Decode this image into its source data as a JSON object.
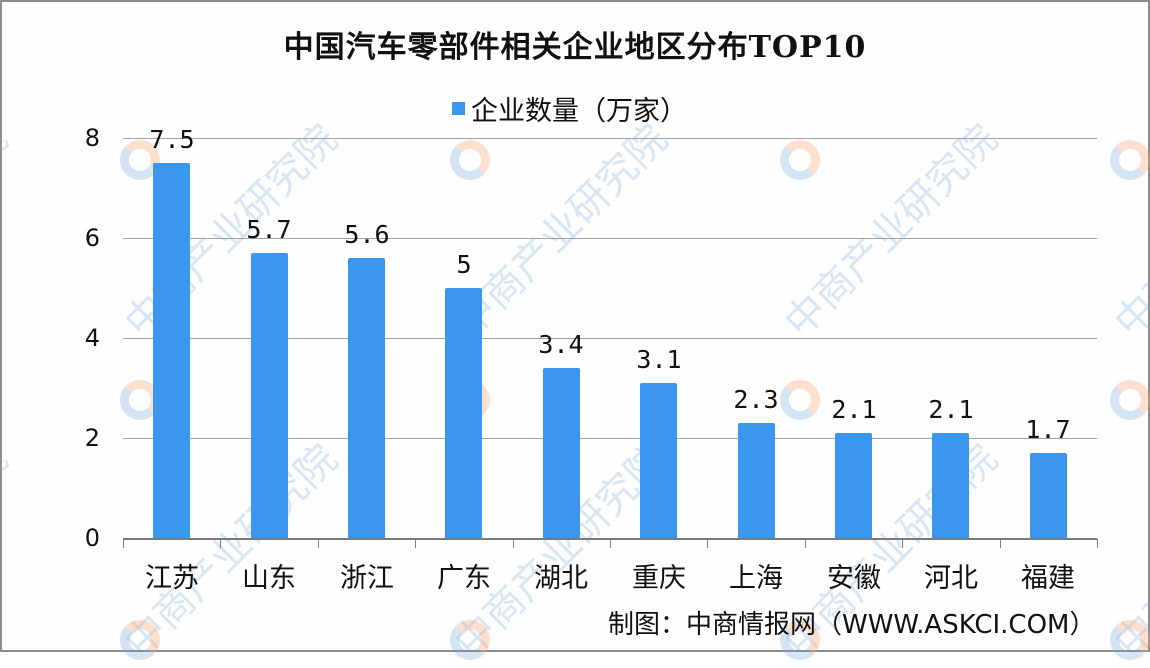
{
  "title": "中国汽车零部件相关企业地区分布TOP10",
  "legend": {
    "label": "企业数量（万家）",
    "color": "#3a96ee"
  },
  "source": "制图：中商情报网（WWW.ASKCI.COM）",
  "watermark": {
    "text": "中商产业研究院"
  },
  "yticks": [
    "0",
    "2",
    "4",
    "6",
    "8"
  ],
  "chart_data": {
    "type": "bar",
    "title": "中国汽车零部件相关企业地区分布TOP10",
    "xlabel": "",
    "ylabel": "",
    "categories": [
      "江苏",
      "山东",
      "浙江",
      "广东",
      "湖北",
      "重庆",
      "上海",
      "安徽",
      "河北",
      "福建"
    ],
    "series": [
      {
        "name": "企业数量（万家）",
        "values": [
          7.5,
          5.7,
          5.6,
          5,
          3.4,
          3.1,
          2.3,
          2.1,
          2.1,
          1.7
        ]
      }
    ],
    "value_labels": [
      "7.5",
      "5.7",
      "5.6",
      "5",
      "3.4",
      "3.1",
      "2.3",
      "2.1",
      "2.1",
      "1.7"
    ],
    "ylim": [
      0,
      8
    ],
    "yticks": [
      0,
      2,
      4,
      6,
      8
    ],
    "grid": true,
    "legend_position": "top"
  }
}
